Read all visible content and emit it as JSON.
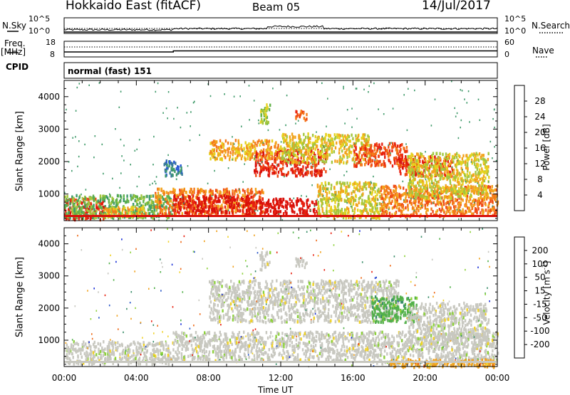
{
  "header": {
    "title": "Hokkaido East (fitACF)",
    "beam": "Beam 05",
    "date": "14/Jul/2017"
  },
  "strip": {
    "nsky_label": "N.Sky",
    "nsky_ticks": [
      "10^5",
      "10^0"
    ],
    "nsearch_label": "N.Search",
    "nsearch_ticks": [
      "10^5",
      "10^0"
    ],
    "freq_label": "Freq.",
    "freq_unit": "[MHz]",
    "freq_ticks": [
      "18",
      "8"
    ],
    "nave_label": "Nave",
    "nave_ticks": [
      "60",
      "0"
    ],
    "cpid_label": "CPID",
    "cpid_text": "normal (fast) 151"
  },
  "chart_data": [
    {
      "type": "heatmap",
      "panel": "power",
      "ylabel": "Slant Range [km]",
      "x_ticks": [
        "00:00",
        "04:00",
        "08:00",
        "12:00",
        "16:00",
        "20:00",
        "00:00"
      ],
      "xlim_hours": [
        0,
        24
      ],
      "y_ticks": [
        1000,
        2000,
        3000,
        4000
      ],
      "ylim": [
        180,
        4500
      ],
      "colorbar": {
        "label": "Power [dB]",
        "ticks": [
          "4",
          "8",
          "12",
          "16",
          "20",
          "24",
          "28"
        ],
        "colors": [
          "#1f3cff",
          "#2a5ad6",
          "#3a7a9a",
          "#3f9a6a",
          "#62b24a",
          "#a3c63e",
          "#e6d21f",
          "#f2a31c",
          "#f47a1a",
          "#ef4a16",
          "#e8200f",
          "#d8100a"
        ]
      },
      "regions": [
        {
          "t0": 0.0,
          "t1": 2.2,
          "r0": 250,
          "r1": 900,
          "level": 10
        },
        {
          "t0": 0.0,
          "t1": 6.0,
          "r0": 300,
          "r1": 1000,
          "level": 4
        },
        {
          "t0": 2.0,
          "t1": 4.5,
          "r0": 350,
          "r1": 650,
          "level": 7
        },
        {
          "t0": 5.0,
          "t1": 11.0,
          "r0": 400,
          "r1": 1200,
          "level": 8
        },
        {
          "t0": 6.0,
          "t1": 10.5,
          "r0": 450,
          "r1": 1000,
          "level": 11
        },
        {
          "t0": 10.0,
          "t1": 14.0,
          "r0": 400,
          "r1": 900,
          "level": 11
        },
        {
          "t0": 14.0,
          "t1": 17.5,
          "r0": 300,
          "r1": 1400,
          "level": 6
        },
        {
          "t0": 17.5,
          "t1": 24.0,
          "r0": 350,
          "r1": 1300,
          "level": 8
        },
        {
          "t0": 10.5,
          "t1": 14.5,
          "r0": 1600,
          "r1": 2400,
          "level": 10
        },
        {
          "t0": 8.0,
          "t1": 12.0,
          "r0": 2100,
          "r1": 2700,
          "level": 7
        },
        {
          "t0": 12.0,
          "t1": 17.0,
          "r0": 2000,
          "r1": 2900,
          "level": 6
        },
        {
          "t0": 16.0,
          "t1": 19.0,
          "r0": 1900,
          "r1": 2600,
          "level": 9
        },
        {
          "t0": 18.5,
          "t1": 21.5,
          "r0": 1600,
          "r1": 2200,
          "level": 10
        },
        {
          "t0": 19.0,
          "t1": 23.5,
          "r0": 900,
          "r1": 2300,
          "level": 6
        },
        {
          "t0": 10.8,
          "t1": 11.4,
          "r0": 3200,
          "r1": 3800,
          "level": 5
        },
        {
          "t0": 12.8,
          "t1": 13.4,
          "r0": 3300,
          "r1": 3600,
          "level": 9
        },
        {
          "t0": 5.5,
          "t1": 6.5,
          "r0": 1600,
          "r1": 2100,
          "level": 2
        }
      ]
    },
    {
      "type": "heatmap",
      "panel": "velocity",
      "ylabel": "Slant Range [km]",
      "xlabel": "Time UT",
      "x_ticks": [
        "00:00",
        "04:00",
        "08:00",
        "12:00",
        "16:00",
        "20:00",
        "00:00"
      ],
      "xlim_hours": [
        0,
        24
      ],
      "y_ticks": [
        1000,
        2000,
        3000,
        4000
      ],
      "ylim": [
        180,
        4500
      ],
      "colorbar": {
        "label": "Velocity [m s^-1]",
        "ticks": [
          "200",
          "100",
          "50",
          "15",
          "-15",
          "-50",
          "-100",
          "-200"
        ],
        "colors": [
          "#1a2fd8",
          "#2b58c8",
          "#3a8e6a",
          "#52b04a",
          "#8ed23c",
          "#c8c8c0",
          "#f0d228",
          "#f0a21e",
          "#ef6a18",
          "#e8200f"
        ]
      },
      "regions": [
        {
          "t0": 0.0,
          "t1": 6.0,
          "r0": 300,
          "r1": 1000,
          "level": 5
        },
        {
          "t0": 6.0,
          "t1": 17.0,
          "r0": 400,
          "r1": 1300,
          "level": 5
        },
        {
          "t0": 17.0,
          "t1": 24.0,
          "r0": 300,
          "r1": 1300,
          "level": 5
        },
        {
          "t0": 18.0,
          "t1": 24.0,
          "r0": 200,
          "r1": 450,
          "level": 7
        },
        {
          "t0": 8.0,
          "t1": 18.5,
          "r0": 1600,
          "r1": 2900,
          "level": 5
        },
        {
          "t0": 17.0,
          "t1": 19.5,
          "r0": 1600,
          "r1": 2400,
          "level": 3
        },
        {
          "t0": 19.0,
          "t1": 23.5,
          "r0": 900,
          "r1": 2200,
          "level": 5
        },
        {
          "t0": 10.8,
          "t1": 11.4,
          "r0": 3200,
          "r1": 3800,
          "level": 5
        },
        {
          "t0": 12.8,
          "t1": 13.4,
          "r0": 3300,
          "r1": 3600,
          "level": 5
        }
      ]
    }
  ]
}
